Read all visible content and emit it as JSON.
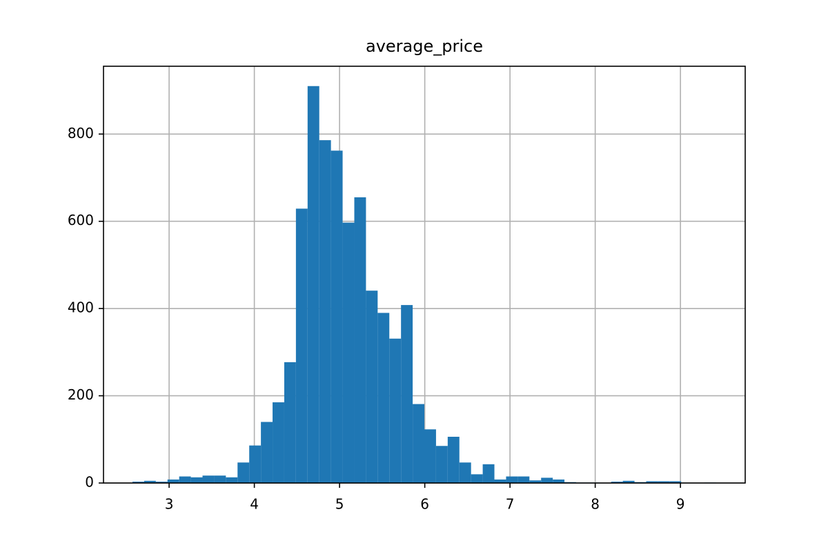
{
  "chart_data": {
    "type": "histogram",
    "title": "average_price",
    "bins": [
      2.57,
      2.707,
      2.844,
      2.981,
      3.118,
      3.255,
      3.392,
      3.529,
      3.666,
      3.803,
      3.94,
      4.077,
      4.214,
      4.351,
      4.488,
      4.625,
      4.762,
      4.899,
      5.036,
      5.173,
      5.31,
      5.447,
      5.584,
      5.721,
      5.858,
      5.995,
      6.132,
      6.269,
      6.406,
      6.543,
      6.68,
      6.817,
      6.954,
      7.091,
      7.228,
      7.365,
      7.502,
      7.639,
      7.776,
      7.913,
      8.05,
      8.187,
      8.324,
      8.461,
      8.598,
      8.735,
      8.872,
      9.009,
      9.146,
      9.283,
      9.42
    ],
    "values": [
      3,
      5,
      3,
      8,
      15,
      13,
      17,
      17,
      13,
      47,
      86,
      140,
      185,
      277,
      629,
      910,
      786,
      762,
      597,
      655,
      441,
      390,
      331,
      408,
      181,
      123,
      85,
      106,
      47,
      20,
      43,
      8,
      15,
      15,
      6,
      12,
      8,
      2,
      1,
      1,
      0,
      3,
      5,
      2,
      4,
      4,
      4,
      0,
      0,
      1
    ],
    "color": "#1f77b4",
    "xlim": [
      2.23,
      9.76
    ],
    "xticks": [
      3,
      4,
      5,
      6,
      7,
      8,
      9
    ],
    "ylim": [
      0,
      955.5
    ],
    "yticks": [
      0,
      200,
      400,
      600,
      800
    ],
    "grid": true
  }
}
